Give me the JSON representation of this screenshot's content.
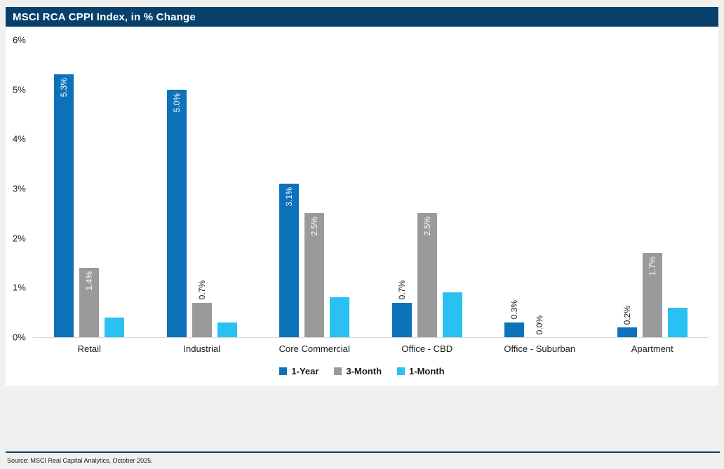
{
  "header": {
    "title": "MSCI RCA CPPI Index, in % Change",
    "bar_color": "#07416b"
  },
  "footer": {
    "source": "Source: MSCI Real Capital Analytics, October 2025."
  },
  "colors": {
    "page_background": "#f0f0ee",
    "panel_background": "#ffffff",
    "title_bar": "#07416b",
    "series_1_year": "#0d72ba",
    "series_3_month": "#9a9a9a",
    "series_1_month": "#29c1f1",
    "baseline": "#d9d9d9",
    "inside_label": "#ffffff",
    "outside_label": "#1a1a1a"
  },
  "chart_data": {
    "type": "bar",
    "title": "MSCI RCA CPPI Index, in % Change",
    "categories": [
      "Retail",
      "Industrial",
      "Core Commercial",
      "Office - CBD",
      "Office - Suburban",
      "Apartment"
    ],
    "series": [
      {
        "name": "1-Year",
        "color": "#0d72ba",
        "values": [
          5.3,
          5.0,
          3.1,
          0.7,
          0.3,
          0.2
        ],
        "data_labels": [
          "5.3%",
          "5.0%",
          "3.1%",
          "0.7%",
          "0.3%",
          "0.2%"
        ]
      },
      {
        "name": "3-Month",
        "color": "#9a9a9a",
        "values": [
          1.4,
          0.7,
          2.5,
          2.5,
          0.0,
          1.7
        ],
        "data_labels": [
          "1.4%",
          "0.7%",
          "2.5%",
          "2.5%",
          "0.0%",
          "1.7%"
        ]
      },
      {
        "name": "1-Month",
        "color": "#29c1f1",
        "values": [
          0.4,
          0.3,
          0.8,
          0.9,
          null,
          0.6
        ],
        "data_labels": [
          null,
          null,
          null,
          null,
          null,
          null
        ]
      }
    ],
    "xlabel": "",
    "ylabel": "",
    "ylim": [
      0,
      6
    ],
    "y_ticks": [
      {
        "value": 6,
        "label": "6%"
      },
      {
        "value": 5,
        "label": "5%"
      },
      {
        "value": 4,
        "label": "4%"
      },
      {
        "value": 3,
        "label": "3%"
      },
      {
        "value": 2,
        "label": "2%"
      },
      {
        "value": 1,
        "label": "1%"
      },
      {
        "value": 0,
        "label": "0%"
      }
    ],
    "grid": false,
    "legend_position": "bottom",
    "label_inside_threshold": 1.0
  }
}
